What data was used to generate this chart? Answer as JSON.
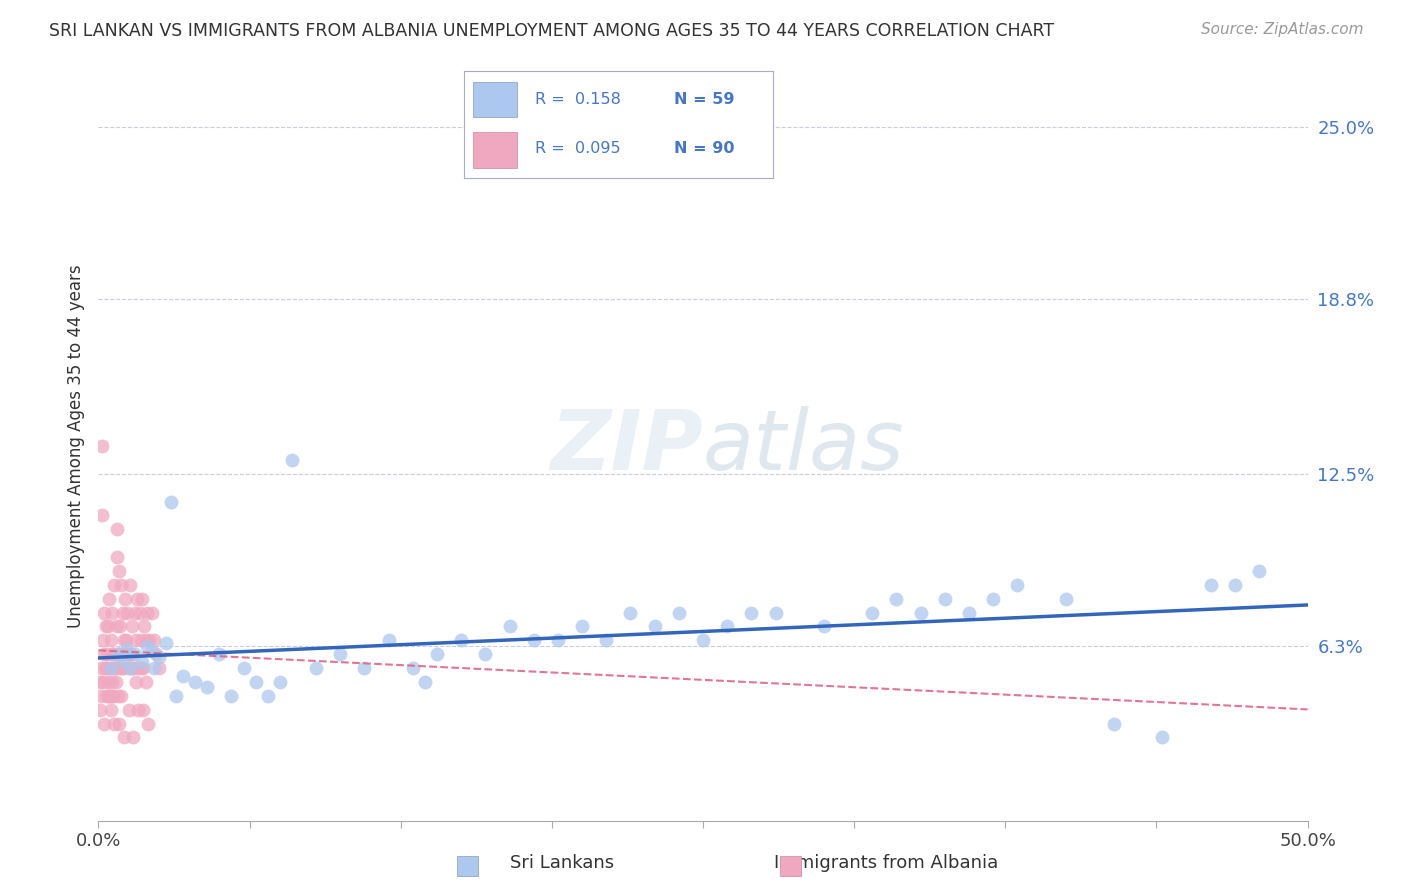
{
  "title": "SRI LANKAN VS IMMIGRANTS FROM ALBANIA UNEMPLOYMENT AMONG AGES 35 TO 44 YEARS CORRELATION CHART",
  "source": "Source: ZipAtlas.com",
  "ylabel": "Unemployment Among Ages 35 to 44 years",
  "ytick_labels": [
    "6.3%",
    "12.5%",
    "18.8%",
    "25.0%"
  ],
  "ytick_values": [
    6.3,
    12.5,
    18.8,
    25.0
  ],
  "xlim": [
    0.0,
    50.0
  ],
  "ylim": [
    0.0,
    27.0
  ],
  "legend_label1": "Sri Lankans",
  "legend_label2": "Immigrants from Albania",
  "color_blue": "#adc8ee",
  "color_pink": "#f0a8c0",
  "line_color_blue": "#3366bb",
  "line_color_pink": "#dd6688",
  "background_color": "#ffffff",
  "sri_lankan_x": [
    0.5,
    0.8,
    1.0,
    1.2,
    1.5,
    1.8,
    2.0,
    2.2,
    2.5,
    2.8,
    3.0,
    3.5,
    4.0,
    4.5,
    5.0,
    5.5,
    6.0,
    6.5,
    7.0,
    7.5,
    8.0,
    9.0,
    10.0,
    11.0,
    12.0,
    13.0,
    14.0,
    15.0,
    16.0,
    17.0,
    18.0,
    19.0,
    20.0,
    21.0,
    22.0,
    23.0,
    24.0,
    25.0,
    26.0,
    27.0,
    28.0,
    30.0,
    32.0,
    33.0,
    34.0,
    35.0,
    36.0,
    37.0,
    38.0,
    40.0,
    42.0,
    44.0,
    46.0,
    47.0,
    48.0,
    2.3,
    13.5,
    1.3,
    3.2
  ],
  "sri_lankan_y": [
    5.5,
    6.0,
    5.8,
    6.2,
    6.0,
    5.7,
    6.3,
    6.1,
    5.9,
    6.4,
    11.5,
    5.2,
    5.0,
    4.8,
    6.0,
    4.5,
    5.5,
    5.0,
    4.5,
    5.0,
    13.0,
    5.5,
    6.0,
    5.5,
    6.5,
    5.5,
    6.0,
    6.5,
    6.0,
    7.0,
    6.5,
    6.5,
    7.0,
    6.5,
    7.5,
    7.0,
    7.5,
    6.5,
    7.0,
    7.5,
    7.5,
    7.0,
    7.5,
    8.0,
    7.5,
    8.0,
    7.5,
    8.0,
    8.5,
    8.0,
    3.5,
    3.0,
    8.5,
    8.5,
    9.0,
    5.5,
    5.0,
    5.5,
    4.5
  ],
  "albania_x": [
    0.05,
    0.08,
    0.1,
    0.12,
    0.15,
    0.18,
    0.2,
    0.22,
    0.25,
    0.28,
    0.3,
    0.32,
    0.35,
    0.38,
    0.4,
    0.42,
    0.45,
    0.48,
    0.5,
    0.52,
    0.55,
    0.58,
    0.6,
    0.62,
    0.65,
    0.68,
    0.7,
    0.72,
    0.75,
    0.78,
    0.8,
    0.82,
    0.85,
    0.88,
    0.9,
    0.92,
    0.95,
    0.98,
    1.0,
    1.05,
    1.1,
    1.15,
    1.2,
    1.25,
    1.3,
    1.35,
    1.4,
    1.45,
    1.5,
    1.55,
    1.6,
    1.65,
    1.7,
    1.75,
    1.8,
    1.85,
    1.9,
    1.95,
    2.0,
    2.1,
    2.2,
    2.3,
    2.4,
    2.5,
    0.15,
    0.35,
    0.55,
    0.75,
    0.95,
    1.15,
    1.35,
    1.55,
    1.75,
    1.95,
    0.25,
    0.45,
    0.65,
    0.85,
    1.05,
    1.25,
    1.45,
    1.65,
    1.85,
    2.05,
    0.6,
    0.7,
    0.9,
    1.0,
    1.2,
    1.4
  ],
  "albania_y": [
    5.0,
    4.0,
    5.5,
    4.5,
    13.5,
    6.5,
    5.0,
    7.5,
    6.0,
    5.5,
    7.0,
    4.5,
    6.0,
    5.0,
    7.0,
    4.5,
    8.0,
    5.5,
    6.5,
    4.0,
    7.5,
    5.0,
    6.0,
    4.5,
    8.5,
    5.5,
    6.0,
    5.0,
    7.0,
    9.5,
    6.0,
    4.5,
    9.0,
    5.5,
    7.0,
    4.5,
    8.5,
    5.5,
    7.5,
    6.5,
    8.0,
    6.0,
    7.5,
    5.5,
    8.5,
    6.0,
    7.0,
    5.5,
    7.5,
    6.5,
    8.0,
    5.5,
    7.5,
    6.5,
    8.0,
    5.5,
    7.0,
    6.5,
    7.5,
    6.5,
    7.5,
    6.5,
    6.0,
    5.5,
    11.0,
    5.5,
    4.5,
    10.5,
    6.0,
    6.5,
    6.0,
    5.0,
    5.5,
    5.0,
    3.5,
    4.5,
    3.5,
    3.5,
    3.0,
    4.0,
    3.0,
    4.0,
    4.0,
    3.5,
    6.0,
    5.5,
    6.0,
    5.5,
    6.0,
    5.5
  ]
}
